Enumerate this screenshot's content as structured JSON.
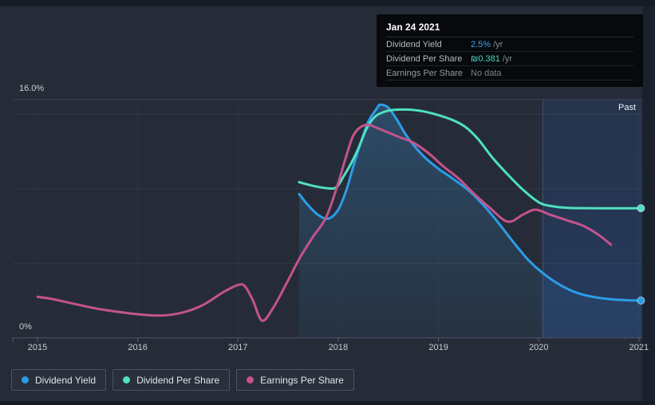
{
  "tooltip": {
    "date": "Jan 24 2021",
    "rows": [
      {
        "label": "Dividend Yield",
        "value": "2.5%",
        "suffix": "/yr",
        "value_color": "#3da1f2",
        "muted": false
      },
      {
        "label": "Dividend Per Share",
        "value": "₪0.381",
        "suffix": "/yr",
        "value_color": "#4adcc5",
        "muted": false
      },
      {
        "label": "Earnings Per Share",
        "value": "No data",
        "suffix": "",
        "value_color": "#7b828a",
        "muted": true
      }
    ]
  },
  "legend": {
    "items": [
      {
        "label": "Dividend Yield",
        "color": "#2b9de8"
      },
      {
        "label": "Dividend Per Share",
        "color": "#50dfc2"
      },
      {
        "label": "Earnings Per Share",
        "color": "#c4538c"
      }
    ]
  },
  "chart_data": {
    "type": "line",
    "title": "",
    "x_ticks": [
      2015,
      2016,
      2017,
      2018,
      2019,
      2020,
      2021
    ],
    "x_tick_labels": [
      "2015",
      "2016",
      "2017",
      "2018",
      "2019",
      "2020",
      "2021"
    ],
    "xlim": [
      2014.75,
      2021.03
    ],
    "ylim": [
      0,
      16
    ],
    "y_axis_labels": {
      "top": "16.0%",
      "bottom": "0%"
    },
    "y_gridlines_pct": [
      5,
      10,
      15,
      16
    ],
    "grid": true,
    "past_region": {
      "label": "Past",
      "start_year": 2020.04,
      "end_year": 2021.03
    },
    "scale_note": "Dividend Yield is in % of price; Dividend Per Share and Earnings Per Share are drawn on the same visual axis (axis-relative values read from pixels)",
    "series": [
      {
        "name": "Dividend Yield",
        "color": "#2b9de8",
        "unit": "%",
        "area_fill": true,
        "end_marker": true,
        "points": [
          [
            2017.61,
            9.65
          ],
          [
            2017.7,
            8.9
          ],
          [
            2017.8,
            8.25
          ],
          [
            2017.9,
            8.0
          ],
          [
            2018.0,
            8.6
          ],
          [
            2018.08,
            9.9
          ],
          [
            2018.15,
            11.5
          ],
          [
            2018.22,
            13.0
          ],
          [
            2018.3,
            14.5
          ],
          [
            2018.38,
            15.35
          ],
          [
            2018.42,
            15.65
          ],
          [
            2018.5,
            15.45
          ],
          [
            2018.58,
            14.7
          ],
          [
            2018.65,
            13.9
          ],
          [
            2018.72,
            13.2
          ],
          [
            2018.85,
            12.2
          ],
          [
            2019.0,
            11.35
          ],
          [
            2019.15,
            10.65
          ],
          [
            2019.3,
            9.9
          ],
          [
            2019.45,
            8.9
          ],
          [
            2019.6,
            7.7
          ],
          [
            2019.75,
            6.4
          ],
          [
            2019.9,
            5.2
          ],
          [
            2020.04,
            4.35
          ],
          [
            2020.2,
            3.6
          ],
          [
            2020.35,
            3.1
          ],
          [
            2020.5,
            2.8
          ],
          [
            2020.7,
            2.6
          ],
          [
            2020.9,
            2.52
          ],
          [
            2021.02,
            2.5
          ]
        ]
      },
      {
        "name": "Dividend Per Share",
        "color": "#50dfc2",
        "unit": "axis-relative",
        "area_fill": false,
        "end_marker": true,
        "points": [
          [
            2017.61,
            10.45
          ],
          [
            2017.75,
            10.2
          ],
          [
            2017.88,
            10.05
          ],
          [
            2017.98,
            10.1
          ],
          [
            2018.05,
            10.8
          ],
          [
            2018.12,
            11.6
          ],
          [
            2018.2,
            12.7
          ],
          [
            2018.28,
            14.0
          ],
          [
            2018.36,
            14.8
          ],
          [
            2018.45,
            15.15
          ],
          [
            2018.55,
            15.3
          ],
          [
            2018.7,
            15.32
          ],
          [
            2018.85,
            15.2
          ],
          [
            2019.0,
            14.95
          ],
          [
            2019.15,
            14.6
          ],
          [
            2019.28,
            14.1
          ],
          [
            2019.4,
            13.3
          ],
          [
            2019.55,
            12.0
          ],
          [
            2019.7,
            10.9
          ],
          [
            2019.85,
            9.9
          ],
          [
            2020.0,
            9.1
          ],
          [
            2020.12,
            8.85
          ],
          [
            2020.3,
            8.72
          ],
          [
            2020.6,
            8.7
          ],
          [
            2021.02,
            8.7
          ]
        ]
      },
      {
        "name": "Earnings Per Share",
        "color": "#c4538c",
        "unit": "axis-relative",
        "area_fill": false,
        "end_marker": false,
        "points": [
          [
            2015.0,
            2.75
          ],
          [
            2015.15,
            2.6
          ],
          [
            2015.35,
            2.3
          ],
          [
            2015.6,
            1.95
          ],
          [
            2015.85,
            1.7
          ],
          [
            2016.05,
            1.55
          ],
          [
            2016.25,
            1.5
          ],
          [
            2016.45,
            1.7
          ],
          [
            2016.65,
            2.2
          ],
          [
            2016.85,
            3.05
          ],
          [
            2017.0,
            3.55
          ],
          [
            2017.07,
            3.45
          ],
          [
            2017.15,
            2.5
          ],
          [
            2017.24,
            1.15
          ],
          [
            2017.35,
            2.0
          ],
          [
            2017.48,
            3.6
          ],
          [
            2017.62,
            5.4
          ],
          [
            2017.75,
            6.8
          ],
          [
            2017.88,
            8.1
          ],
          [
            2018.0,
            10.4
          ],
          [
            2018.08,
            12.2
          ],
          [
            2018.16,
            13.7
          ],
          [
            2018.28,
            14.3
          ],
          [
            2018.42,
            14.0
          ],
          [
            2018.6,
            13.5
          ],
          [
            2018.75,
            13.1
          ],
          [
            2018.9,
            12.4
          ],
          [
            2019.05,
            11.5
          ],
          [
            2019.2,
            10.7
          ],
          [
            2019.35,
            9.7
          ],
          [
            2019.5,
            8.8
          ],
          [
            2019.69,
            7.8
          ],
          [
            2019.85,
            8.3
          ],
          [
            2019.97,
            8.6
          ],
          [
            2020.12,
            8.25
          ],
          [
            2020.3,
            7.85
          ],
          [
            2020.45,
            7.5
          ],
          [
            2020.6,
            6.9
          ],
          [
            2020.72,
            6.25
          ]
        ]
      }
    ],
    "colors": {
      "card_bg": "#252c38",
      "page_bg": "#161b24",
      "past_fill": "#2a62c4",
      "area_fill": "#3e96d7",
      "grid": "#ffffff12",
      "axis": "#4d5564"
    }
  }
}
